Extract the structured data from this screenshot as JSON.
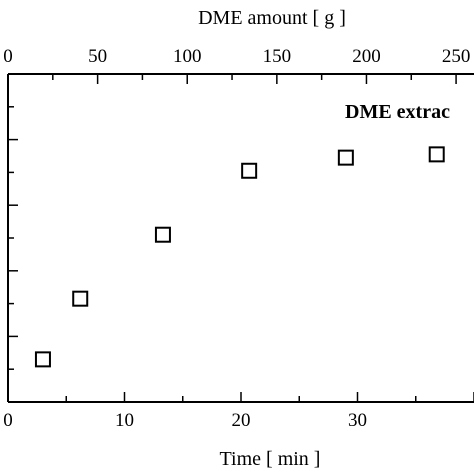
{
  "chart_data": {
    "type": "scatter",
    "title": "",
    "annotation": "DME extrac",
    "xlabel_bottom": "Time [ min ]",
    "xlabel_top": "DME amount [ g ]",
    "ylabel": "",
    "x_bottom_ticks": [
      "0",
      "10",
      "20",
      "30"
    ],
    "x_top_ticks": [
      "0",
      "50",
      "100",
      "150",
      "200",
      "250"
    ],
    "x_bottom_range": [
      0,
      40
    ],
    "x_top_range": [
      0,
      260
    ],
    "y_range": [
      0,
      10
    ],
    "grid": false,
    "marker": "open-square",
    "series": [
      {
        "x": [
          3.0,
          6.2,
          13.3,
          20.7,
          29.0,
          36.8
        ],
        "y": [
          1.3,
          3.15,
          5.1,
          7.05,
          7.45,
          7.55
        ]
      }
    ]
  }
}
